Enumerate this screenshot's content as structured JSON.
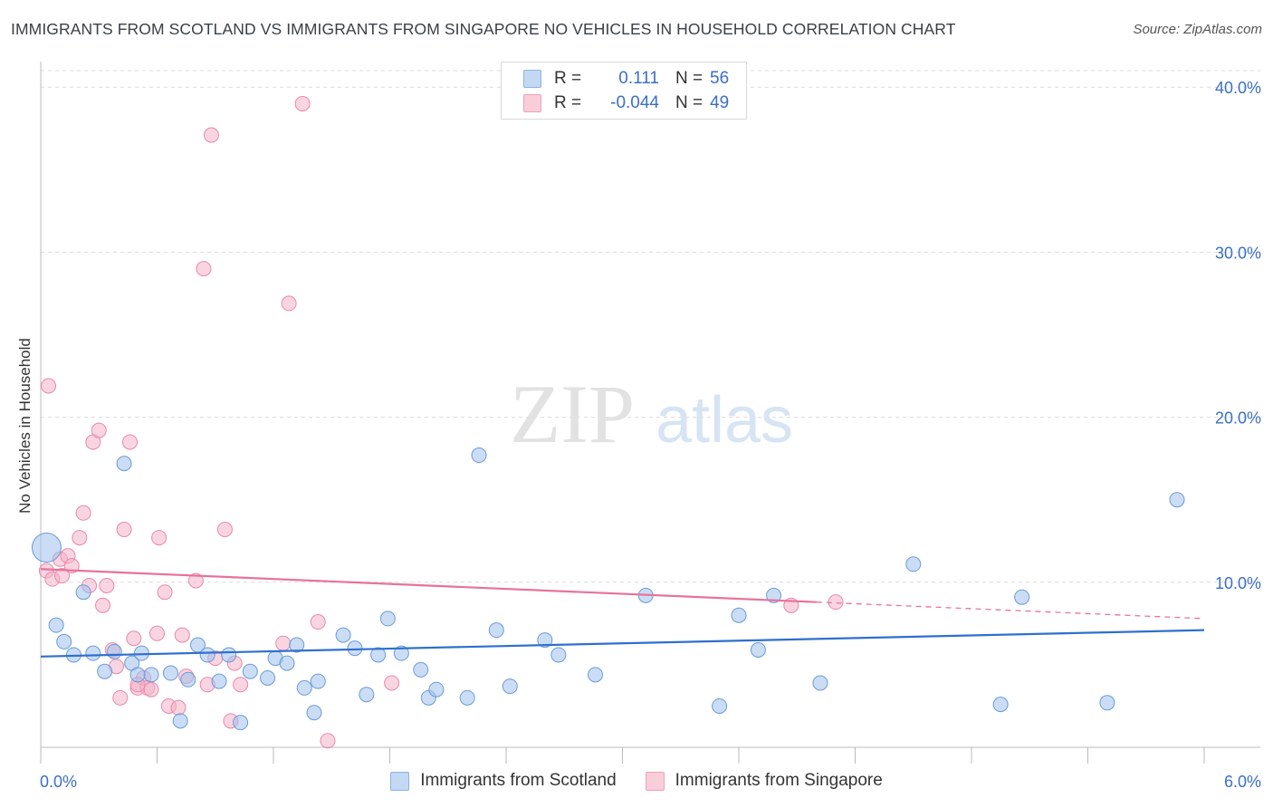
{
  "title": "IMMIGRANTS FROM SCOTLAND VS IMMIGRANTS FROM SINGAPORE NO VEHICLES IN HOUSEHOLD CORRELATION CHART",
  "source": "Source: ZipAtlas.com",
  "watermark": {
    "zip": "ZIP",
    "atlas": "atlas"
  },
  "legend": {
    "rows": [
      {
        "r_label": "R =",
        "r_value": "0.111",
        "n_label": "N =",
        "n_value": "56",
        "color": "#9ec1ec"
      },
      {
        "r_label": "R =",
        "r_value": "-0.044",
        "n_label": "N =",
        "n_value": "49",
        "color": "#f4b3c8"
      }
    ]
  },
  "bottom_legend": {
    "items": [
      {
        "label": "Immigrants from Scotland",
        "color": "#9ec1ec"
      },
      {
        "label": "Immigrants from Singapore",
        "color": "#f4b3c8"
      }
    ]
  },
  "chart_data": {
    "type": "scatter",
    "title": "IMMIGRANTS FROM SCOTLAND VS IMMIGRANTS FROM SINGAPORE NO VEHICLES IN HOUSEHOLD CORRELATION CHART",
    "xlabel": "",
    "ylabel": "No Vehicles in Household",
    "xlim": [
      0,
      6
    ],
    "ylim": [
      0,
      41
    ],
    "x_tick_labels": [
      "0.0%",
      "6.0%"
    ],
    "y_ticks": [
      10,
      20,
      30,
      40
    ],
    "y_tick_labels": [
      "10.0%",
      "20.0%",
      "30.0%",
      "40.0%"
    ],
    "grid": true,
    "series": [
      {
        "name": "Immigrants from Scotland",
        "color": "#9ec1ec",
        "stroke": "#6b9bd8",
        "trend": {
          "x": [
            0,
            6
          ],
          "y": [
            5.5,
            7.1
          ],
          "color": "#2f6fcf",
          "dashed_after": null
        },
        "points": [
          {
            "x": 0.03,
            "y": 12.1,
            "big": true
          },
          {
            "x": 0.08,
            "y": 7.4
          },
          {
            "x": 0.12,
            "y": 6.4
          },
          {
            "x": 0.17,
            "y": 5.6
          },
          {
            "x": 0.22,
            "y": 9.4
          },
          {
            "x": 0.27,
            "y": 5.7
          },
          {
            "x": 0.33,
            "y": 4.6
          },
          {
            "x": 0.38,
            "y": 5.8
          },
          {
            "x": 0.43,
            "y": 17.2
          },
          {
            "x": 0.47,
            "y": 5.1
          },
          {
            "x": 0.52,
            "y": 5.7
          },
          {
            "x": 0.57,
            "y": 4.4
          },
          {
            "x": 0.67,
            "y": 4.5
          },
          {
            "x": 0.72,
            "y": 1.6
          },
          {
            "x": 0.76,
            "y": 4.1
          },
          {
            "x": 0.81,
            "y": 6.2
          },
          {
            "x": 0.86,
            "y": 5.6
          },
          {
            "x": 0.92,
            "y": 4.0
          },
          {
            "x": 0.97,
            "y": 5.6
          },
          {
            "x": 1.03,
            "y": 1.5
          },
          {
            "x": 1.08,
            "y": 4.6
          },
          {
            "x": 1.17,
            "y": 4.2
          },
          {
            "x": 1.21,
            "y": 5.4
          },
          {
            "x": 1.27,
            "y": 5.1
          },
          {
            "x": 1.32,
            "y": 6.2
          },
          {
            "x": 1.36,
            "y": 3.6
          },
          {
            "x": 1.43,
            "y": 4.0
          },
          {
            "x": 1.41,
            "y": 2.1
          },
          {
            "x": 1.56,
            "y": 6.8
          },
          {
            "x": 1.62,
            "y": 6.0
          },
          {
            "x": 1.68,
            "y": 3.2
          },
          {
            "x": 1.74,
            "y": 5.6
          },
          {
            "x": 1.79,
            "y": 7.8
          },
          {
            "x": 1.86,
            "y": 5.7
          },
          {
            "x": 1.96,
            "y": 4.7
          },
          {
            "x": 2.0,
            "y": 3.0
          },
          {
            "x": 2.04,
            "y": 3.5
          },
          {
            "x": 2.26,
            "y": 17.7
          },
          {
            "x": 2.2,
            "y": 3.0
          },
          {
            "x": 2.35,
            "y": 7.1
          },
          {
            "x": 2.42,
            "y": 3.7
          },
          {
            "x": 2.6,
            "y": 6.5
          },
          {
            "x": 2.67,
            "y": 5.6
          },
          {
            "x": 2.86,
            "y": 4.4
          },
          {
            "x": 3.12,
            "y": 9.2
          },
          {
            "x": 3.5,
            "y": 2.5
          },
          {
            "x": 3.6,
            "y": 8.0
          },
          {
            "x": 3.7,
            "y": 5.9
          },
          {
            "x": 3.78,
            "y": 9.2
          },
          {
            "x": 4.02,
            "y": 3.9
          },
          {
            "x": 4.5,
            "y": 11.1
          },
          {
            "x": 5.06,
            "y": 9.1
          },
          {
            "x": 4.95,
            "y": 2.6
          },
          {
            "x": 5.5,
            "y": 2.7
          },
          {
            "x": 5.86,
            "y": 15.0
          },
          {
            "x": 0.5,
            "y": 4.4
          }
        ]
      },
      {
        "name": "Immigrants from Singapore",
        "color": "#f4b3c8",
        "stroke": "#e88aa8",
        "trend": {
          "x": [
            0,
            4.0
          ],
          "y": [
            10.8,
            8.8
          ],
          "color": "#e8729a",
          "dashed_to": [
            6,
            7.8
          ]
        },
        "points": [
          {
            "x": 0.03,
            "y": 10.7
          },
          {
            "x": 0.04,
            "y": 21.9
          },
          {
            "x": 0.06,
            "y": 10.2
          },
          {
            "x": 0.1,
            "y": 11.4
          },
          {
            "x": 0.11,
            "y": 10.4
          },
          {
            "x": 0.14,
            "y": 11.6
          },
          {
            "x": 0.16,
            "y": 11.0
          },
          {
            "x": 0.2,
            "y": 12.7
          },
          {
            "x": 0.22,
            "y": 14.2
          },
          {
            "x": 0.25,
            "y": 9.8
          },
          {
            "x": 0.27,
            "y": 18.5
          },
          {
            "x": 0.3,
            "y": 19.2
          },
          {
            "x": 0.32,
            "y": 8.6
          },
          {
            "x": 0.34,
            "y": 9.8
          },
          {
            "x": 0.37,
            "y": 5.9
          },
          {
            "x": 0.39,
            "y": 4.9
          },
          {
            "x": 0.41,
            "y": 3.0
          },
          {
            "x": 0.43,
            "y": 13.2
          },
          {
            "x": 0.46,
            "y": 18.5
          },
          {
            "x": 0.48,
            "y": 6.6
          },
          {
            "x": 0.5,
            "y": 3.6
          },
          {
            "x": 0.53,
            "y": 4.2
          },
          {
            "x": 0.55,
            "y": 3.6
          },
          {
            "x": 0.57,
            "y": 3.5
          },
          {
            "x": 0.6,
            "y": 6.9
          },
          {
            "x": 0.61,
            "y": 12.7
          },
          {
            "x": 0.64,
            "y": 9.4
          },
          {
            "x": 0.66,
            "y": 2.5
          },
          {
            "x": 0.71,
            "y": 2.4
          },
          {
            "x": 0.73,
            "y": 6.8
          },
          {
            "x": 0.75,
            "y": 4.3
          },
          {
            "x": 0.8,
            "y": 10.1
          },
          {
            "x": 0.84,
            "y": 29.0
          },
          {
            "x": 0.86,
            "y": 3.8
          },
          {
            "x": 0.88,
            "y": 37.1
          },
          {
            "x": 0.9,
            "y": 5.4
          },
          {
            "x": 0.95,
            "y": 13.2
          },
          {
            "x": 0.98,
            "y": 1.6
          },
          {
            "x": 1.0,
            "y": 5.1
          },
          {
            "x": 1.03,
            "y": 3.8
          },
          {
            "x": 1.25,
            "y": 6.3
          },
          {
            "x": 1.28,
            "y": 26.9
          },
          {
            "x": 1.35,
            "y": 39.0
          },
          {
            "x": 1.43,
            "y": 7.6
          },
          {
            "x": 1.48,
            "y": 0.4
          },
          {
            "x": 1.81,
            "y": 3.9
          },
          {
            "x": 3.87,
            "y": 8.6
          },
          {
            "x": 4.1,
            "y": 8.8
          },
          {
            "x": 0.5,
            "y": 3.8
          }
        ]
      }
    ]
  }
}
